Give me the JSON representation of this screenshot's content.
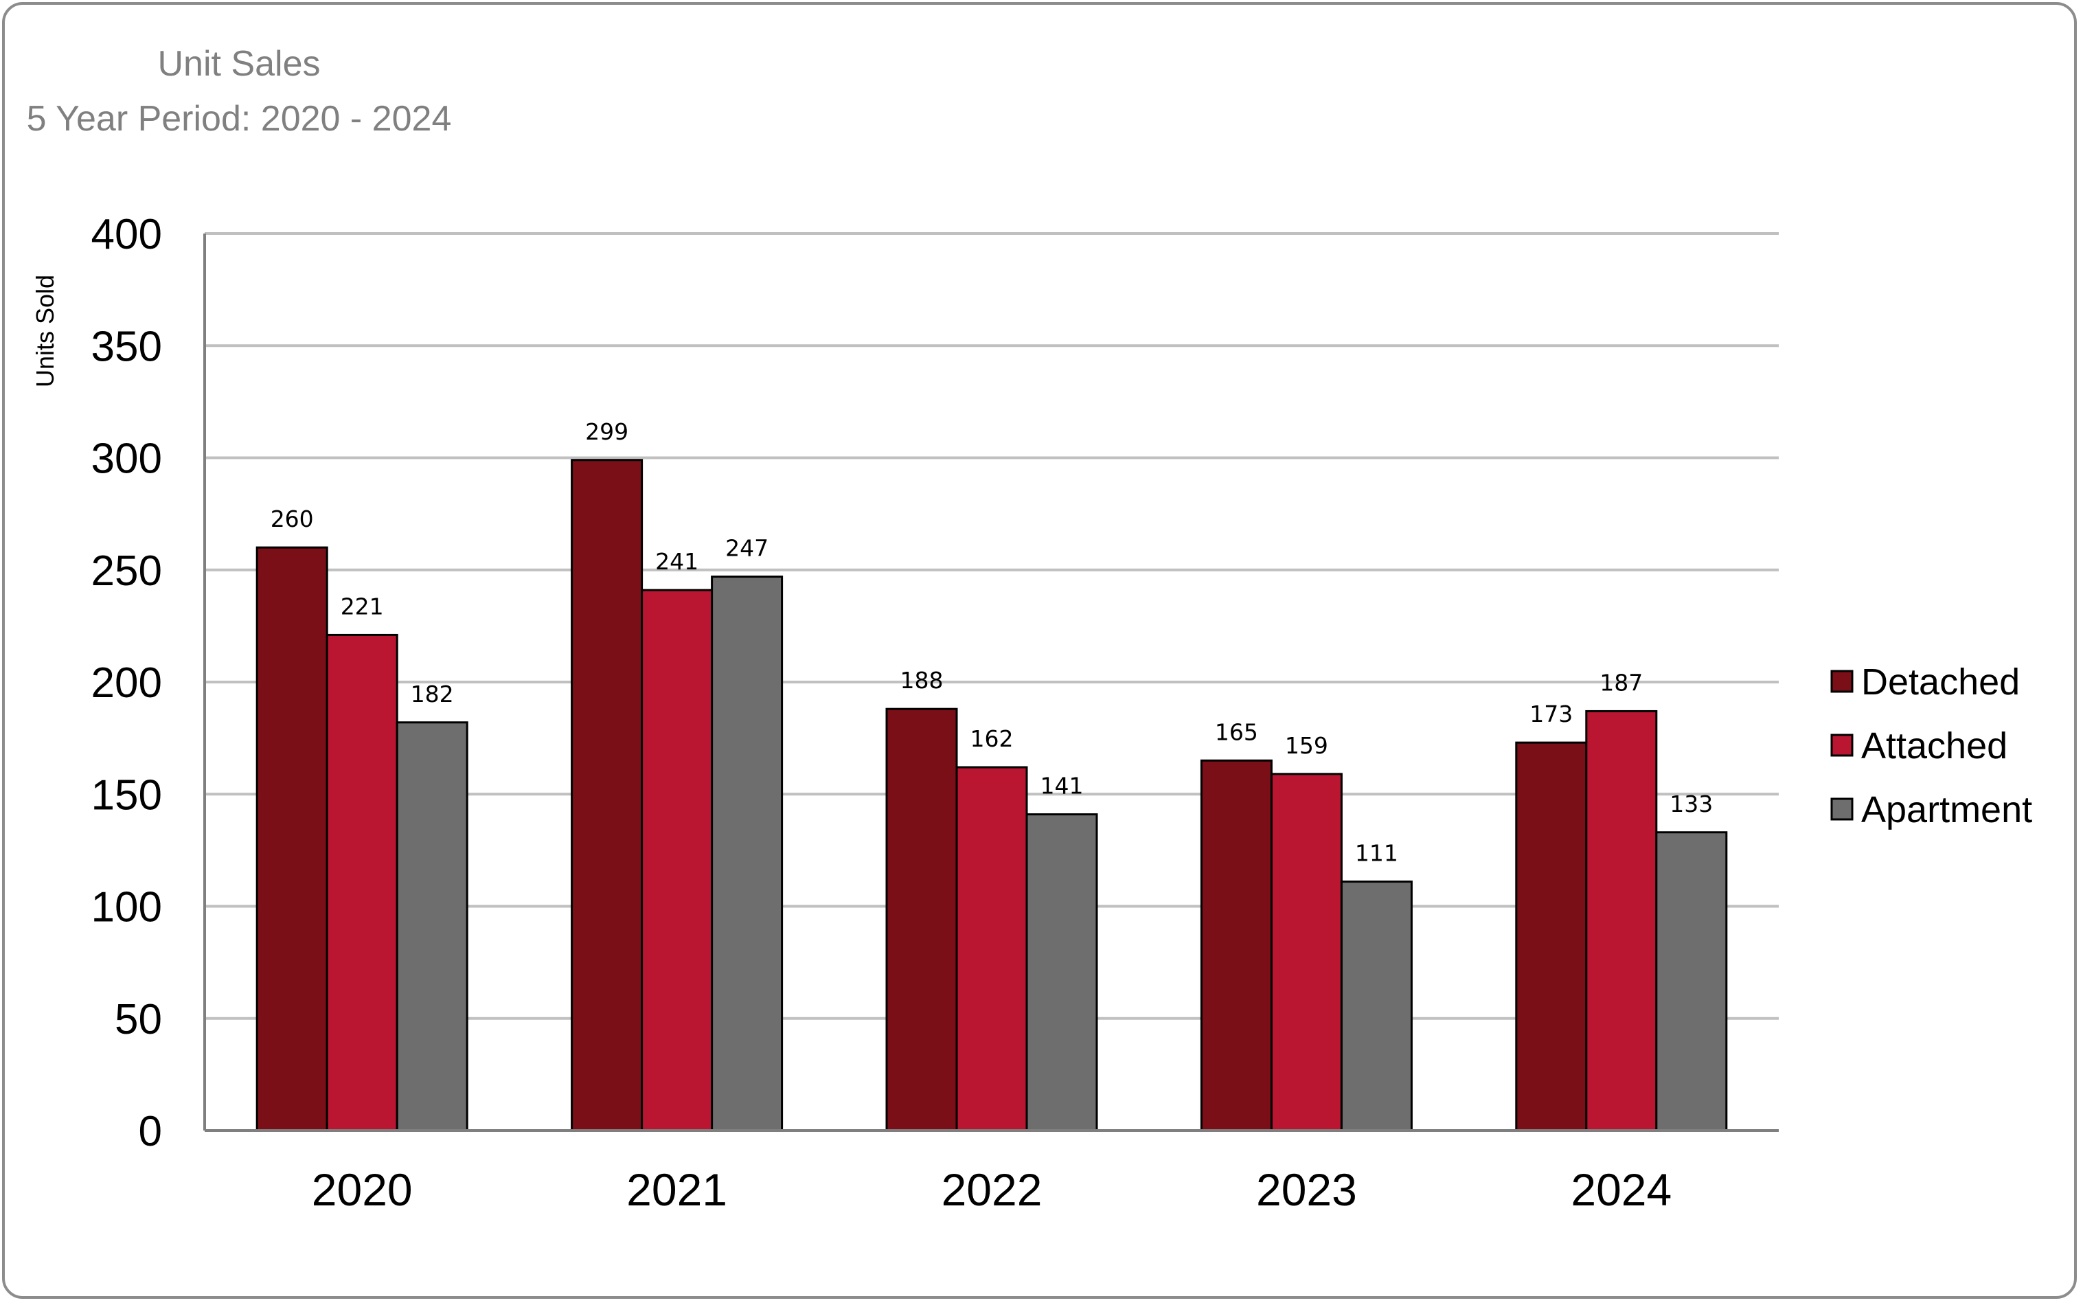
{
  "chart_data": {
    "type": "bar",
    "title": "Unit Sales",
    "subtitle": "5 Year Period: 2020 - 2024",
    "xlabel": "",
    "ylabel": "Units Sold",
    "categories": [
      "2020",
      "2021",
      "2022",
      "2023",
      "2024"
    ],
    "series": [
      {
        "name": "Detached",
        "color": "#7b0f18",
        "values": [
          260,
          299,
          188,
          165,
          173
        ]
      },
      {
        "name": "Attached",
        "color": "#ba1632",
        "values": [
          221,
          241,
          162,
          159,
          187
        ]
      },
      {
        "name": "Apartment",
        "color": "#6e6e6e",
        "values": [
          182,
          247,
          141,
          111,
          133
        ]
      }
    ],
    "ylim": [
      0,
      400
    ],
    "yticks": [
      0,
      50,
      100,
      150,
      200,
      250,
      300,
      350,
      400
    ],
    "grid": true,
    "legend_position": "right",
    "data_labels": true
  }
}
